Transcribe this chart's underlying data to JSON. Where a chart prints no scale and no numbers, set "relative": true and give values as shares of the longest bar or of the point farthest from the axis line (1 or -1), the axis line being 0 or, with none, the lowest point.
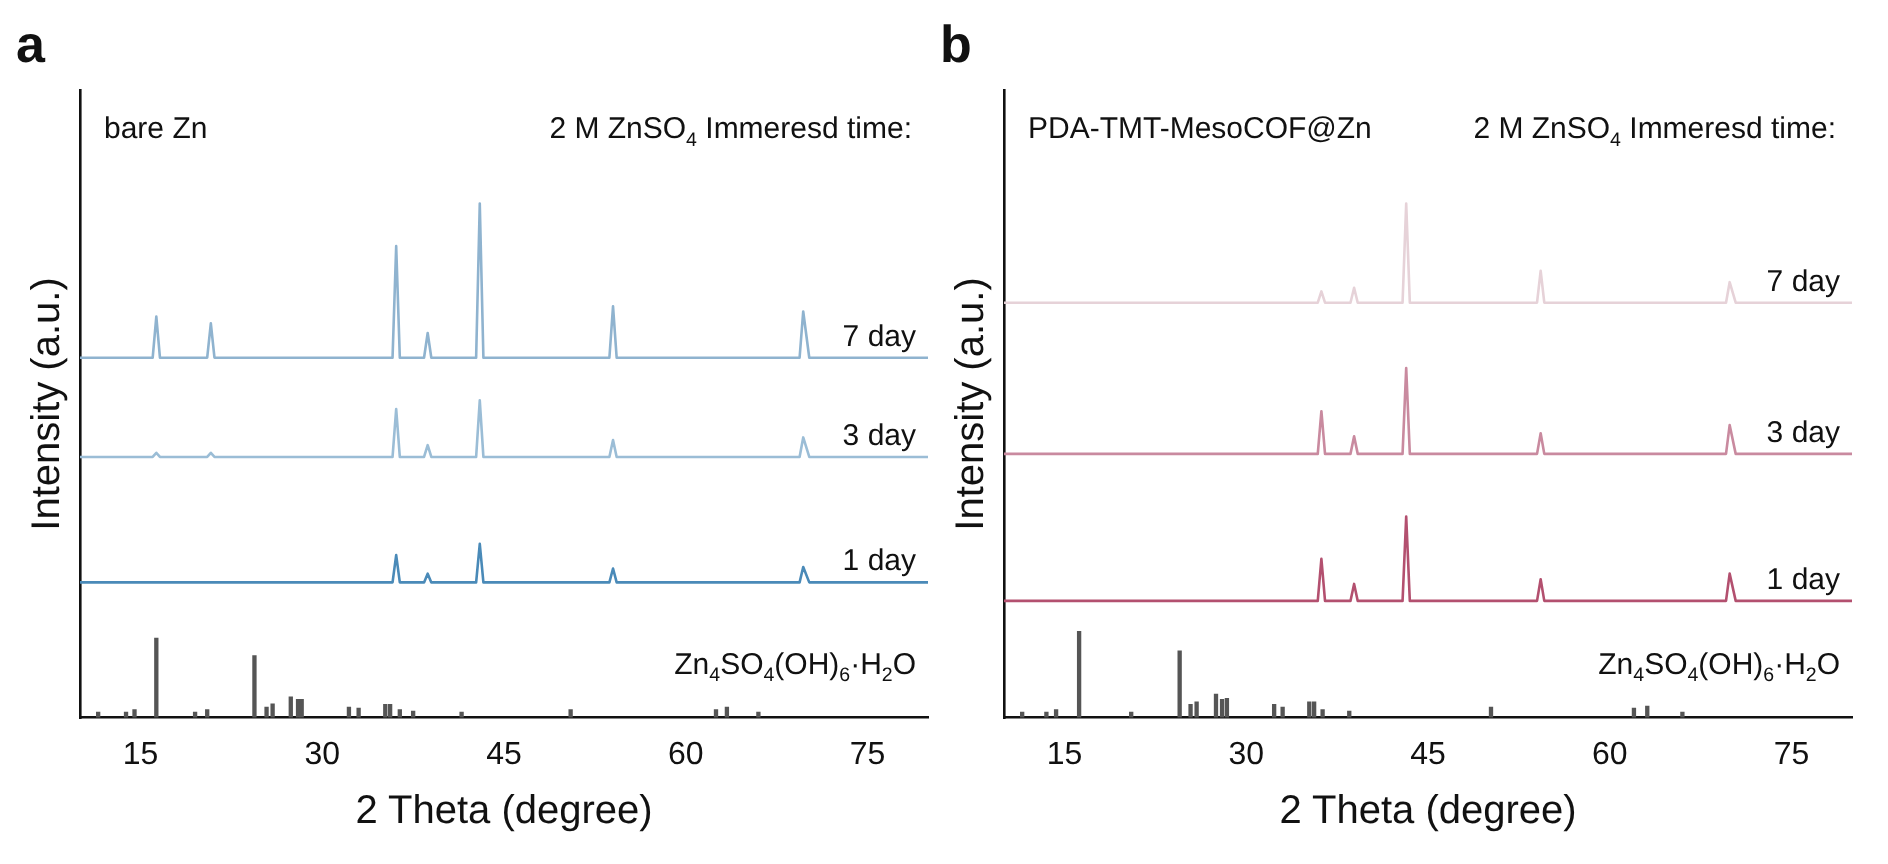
{
  "chart_data": [
    {
      "type": "line",
      "title": "a",
      "xlabel": "2 Theta (degree)",
      "ylabel": "Intensity (a.u.)",
      "relative": true,
      "xlim": [
        10,
        80
      ],
      "xticks": [
        15,
        30,
        45,
        60,
        75
      ],
      "annotations": [
        "bare Zn",
        "2 M ZnSO$_{4}$ Immeresd time:"
      ],
      "series": [
        {
          "name": "7 day",
          "color": "#8fb3cf",
          "x": [
            10,
            16.0,
            16.3,
            16.6,
            20.5,
            20.8,
            21.1,
            35.8,
            36.1,
            36.4,
            38.4,
            38.7,
            39.0,
            42.7,
            43.0,
            43.3,
            53.7,
            54.0,
            54.3,
            69.4,
            69.7,
            70.2,
            80
          ],
          "values": [
            0.7,
            0.7,
            0.78,
            0.7,
            0.7,
            0.767,
            0.7,
            0.7,
            0.917,
            0.7,
            0.7,
            0.748,
            0.7,
            0.7,
            1.0,
            0.7,
            0.7,
            0.8,
            0.7,
            0.7,
            0.79,
            0.7,
            0.7
          ]
        },
        {
          "name": "3 day",
          "color": "#9bbdd6",
          "x": [
            10,
            16.0,
            16.3,
            16.6,
            20.5,
            20.8,
            21.1,
            35.8,
            36.1,
            36.4,
            38.4,
            38.7,
            39.0,
            42.7,
            43.0,
            43.3,
            53.7,
            54.0,
            54.3,
            69.4,
            69.7,
            70.2,
            80
          ],
          "values": [
            0.507,
            0.507,
            0.515,
            0.507,
            0.507,
            0.515,
            0.507,
            0.507,
            0.6,
            0.507,
            0.507,
            0.53,
            0.507,
            0.507,
            0.617,
            0.507,
            0.507,
            0.54,
            0.507,
            0.507,
            0.545,
            0.507,
            0.507
          ]
        },
        {
          "name": "1 day",
          "color": "#4a8ab8",
          "x": [
            10,
            35.8,
            36.1,
            36.4,
            38.4,
            38.7,
            39.0,
            42.7,
            43.0,
            43.3,
            53.7,
            54.0,
            54.3,
            69.4,
            69.7,
            70.2,
            80
          ],
          "values": [
            0.263,
            0.263,
            0.316,
            0.263,
            0.263,
            0.28,
            0.263,
            0.263,
            0.338,
            0.263,
            0.263,
            0.29,
            0.263,
            0.263,
            0.293,
            0.263,
            0.263
          ]
        },
        {
          "name": "Zn$_{4}$SO$_{4}$(OH)$_{6}$·H$_{2}$O",
          "color": "#555555",
          "type": "bar",
          "x": [
            11.5,
            13.8,
            14.5,
            16.3,
            19.5,
            20.5,
            24.4,
            25.4,
            25.9,
            27.4,
            28.0,
            28.3,
            32.2,
            33.0,
            35.2,
            35.6,
            36.4,
            37.5,
            41.5,
            50.5,
            62.5,
            63.4,
            66
          ],
          "values": [
            0.01,
            0.01,
            0.015,
            0.154,
            0.01,
            0.015,
            0.12,
            0.02,
            0.026,
            0.04,
            0.035,
            0.035,
            0.02,
            0.018,
            0.025,
            0.025,
            0.015,
            0.012,
            0.01,
            0.015,
            0.015,
            0.02,
            0.01
          ]
        }
      ]
    },
    {
      "type": "line",
      "title": "b",
      "xlabel": "2 Theta (degree)",
      "ylabel": "Intensity (a.u.)",
      "relative": true,
      "xlim": [
        10,
        80
      ],
      "xticks": [
        15,
        30,
        45,
        60,
        75
      ],
      "annotations": [
        "PDA-TMT-MesoCOF@Zn",
        "2 M ZnSO$_{4}$ Immeresd time:"
      ],
      "series": [
        {
          "name": "7 day",
          "color": "#e6d2d8",
          "x": [
            10,
            35.9,
            36.2,
            36.5,
            38.6,
            38.9,
            39.2,
            42.9,
            43.2,
            43.5,
            54.0,
            54.3,
            54.6,
            69.6,
            69.9,
            70.4,
            80
          ],
          "values": [
            0.807,
            0.807,
            0.829,
            0.807,
            0.807,
            0.836,
            0.807,
            0.807,
            1.0,
            0.807,
            0.807,
            0.869,
            0.807,
            0.807,
            0.847,
            0.807,
            0.807
          ]
        },
        {
          "name": "3 day",
          "color": "#c98a9f",
          "x": [
            10,
            35.9,
            36.2,
            36.5,
            38.6,
            38.9,
            39.2,
            42.9,
            43.2,
            43.5,
            54.0,
            54.3,
            54.6,
            69.6,
            69.9,
            70.4,
            80
          ],
          "values": [
            0.513,
            0.513,
            0.596,
            0.513,
            0.513,
            0.547,
            0.513,
            0.513,
            0.68,
            0.513,
            0.513,
            0.553,
            0.513,
            0.513,
            0.569,
            0.513,
            0.513
          ]
        },
        {
          "name": "1 day",
          "color": "#b3506f",
          "x": [
            10,
            35.9,
            36.2,
            36.5,
            38.6,
            38.9,
            39.2,
            42.9,
            43.2,
            43.5,
            54.0,
            54.3,
            54.6,
            69.6,
            69.9,
            70.4,
            80
          ],
          "values": [
            0.227,
            0.227,
            0.309,
            0.227,
            0.227,
            0.26,
            0.227,
            0.227,
            0.391,
            0.227,
            0.227,
            0.269,
            0.227,
            0.227,
            0.28,
            0.227,
            0.227
          ]
        },
        {
          "name": "Zn$_{4}$SO$_{4}$(OH)$_{6}$·H$_{2}$O",
          "color": "#555555",
          "type": "bar",
          "x": [
            11.5,
            13.5,
            14.3,
            16.2,
            20.5,
            24.5,
            25.4,
            25.9,
            27.5,
            28.0,
            28.4,
            32.3,
            33.0,
            35.2,
            35.6,
            36.3,
            38.5,
            50.2,
            62.0,
            63.1,
            66
          ],
          "values": [
            0.01,
            0.01,
            0.015,
            0.167,
            0.01,
            0.129,
            0.025,
            0.03,
            0.045,
            0.035,
            0.037,
            0.025,
            0.02,
            0.03,
            0.03,
            0.015,
            0.012,
            0.02,
            0.018,
            0.022,
            0.01
          ]
        }
      ]
    }
  ]
}
